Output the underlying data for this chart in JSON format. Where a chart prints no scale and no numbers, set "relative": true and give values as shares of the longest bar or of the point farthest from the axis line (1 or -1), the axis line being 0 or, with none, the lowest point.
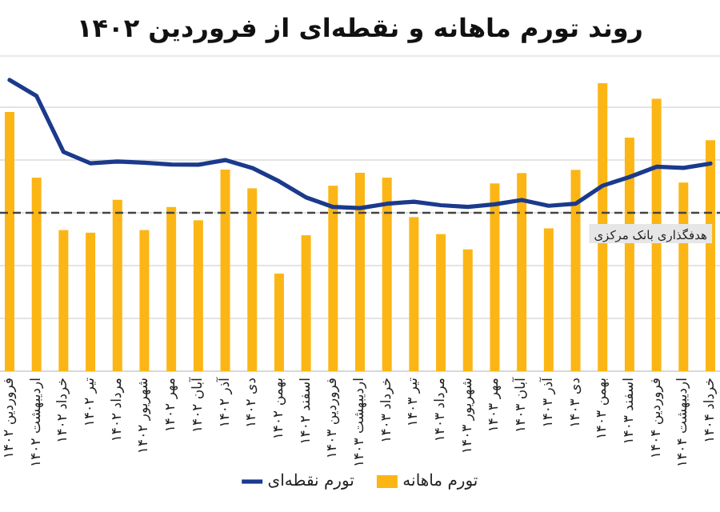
{
  "chart_data": {
    "type": "bar",
    "relative": true,
    "title": "روند تورم ماهانه و نقطه‌ای از فروردین ۱۴۰۲",
    "categories": [
      "فروردین ۱۴۰۲",
      "اردیبهشت ۱۴۰۲",
      "خرداد ۱۴۰۲",
      "تیر ۱۴۰۲",
      "مرداد ۱۴۰۲",
      "شهریور ۱۴۰۲",
      "مهر ۱۴۰۲",
      "آبان ۱۴۰۲",
      "آذر ۱۴۰۲",
      "دی ۱۴۰۲",
      "بهمن ۱۴۰۲",
      "اسفند ۱۴۰۲",
      "فروردین ۱۴۰۳",
      "اردیبهشت ۱۴۰۳",
      "خرداد ۱۴۰۳",
      "تیر ۱۴۰۳",
      "مرداد ۱۴۰۳",
      "شهریور ۱۴۰۳",
      "مهر ۱۴۰۳",
      "آبان ۱۴۰۳",
      "آذر ۱۴۰۳",
      "دی ۱۴۰۳",
      "بهمن ۱۴۰۳",
      "اسفند ۱۴۰۳",
      "فروردین ۱۴۰۴",
      "اردیبهشت ۱۴۰۴",
      "خرداد ۱۴۰۴"
    ],
    "series": [
      {
        "name": "تورم ماهانه",
        "color": "#fbb616",
        "values": [
          0.9,
          0.672,
          0.49,
          0.481,
          0.595,
          0.49,
          0.57,
          0.524,
          0.7,
          0.635,
          0.339,
          0.472,
          0.644,
          0.689,
          0.672,
          0.535,
          0.476,
          0.423,
          0.652,
          0.688,
          0.496,
          0.699,
          1.0,
          0.811,
          0.946,
          0.655,
          0.802
        ]
      },
      {
        "name": "تورم نقطه‌ای",
        "type": "line",
        "axis": "y2",
        "color": "#1b3a8c",
        "values": [
          1.0,
          0.945,
          0.753,
          0.714,
          0.72,
          0.716,
          0.71,
          0.709,
          0.725,
          0.698,
          0.652,
          0.597,
          0.564,
          0.56,
          0.575,
          0.582,
          0.57,
          0.564,
          0.573,
          0.588,
          0.568,
          0.575,
          0.637,
          0.667,
          0.702,
          0.698,
          0.713
        ]
      }
    ],
    "ref_lines": [
      {
        "axis": "y",
        "value": 0.55,
        "label": "هدفگذاری بانک مرکزی",
        "color": "#444444",
        "line_style": "dashed"
      }
    ],
    "grid": "y",
    "legend": "bottom"
  }
}
